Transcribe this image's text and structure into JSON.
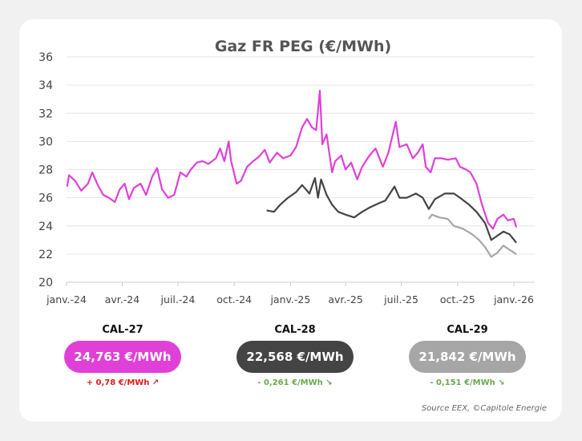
{
  "chart_data": {
    "type": "line",
    "title": "Gaz FR PEG (€/MWh)",
    "ylim": [
      20,
      36
    ],
    "yticks": [
      "20",
      "22",
      "24",
      "26",
      "28",
      "30",
      "32",
      "34",
      "36"
    ],
    "xticks": [
      {
        "date": "2024-01-01",
        "label": "janv.-24"
      },
      {
        "date": "2024-04-01",
        "label": "avr.-24"
      },
      {
        "date": "2024-07-01",
        "label": "juil.-24"
      },
      {
        "date": "2024-10-01",
        "label": "oct.-24"
      },
      {
        "date": "2025-01-01",
        "label": "janv.-25"
      },
      {
        "date": "2025-04-01",
        "label": "avr.-25"
      },
      {
        "date": "2025-07-01",
        "label": "juil.-25"
      },
      {
        "date": "2025-10-01",
        "label": "oct.-25"
      },
      {
        "date": "2026-01-01",
        "label": "janv.-26"
      }
    ],
    "grid": true,
    "series": [
      {
        "name": "CAL-27",
        "color": "#e040d8",
        "points": [
          [
            "2024-01-02",
            26.8
          ],
          [
            "2024-01-05",
            27.6
          ],
          [
            "2024-01-15",
            27.2
          ],
          [
            "2024-01-25",
            26.5
          ],
          [
            "2024-02-05",
            27.0
          ],
          [
            "2024-02-12",
            27.8
          ],
          [
            "2024-02-20",
            27.0
          ],
          [
            "2024-03-01",
            26.2
          ],
          [
            "2024-03-10",
            26.0
          ],
          [
            "2024-03-20",
            25.7
          ],
          [
            "2024-03-28",
            26.6
          ],
          [
            "2024-04-05",
            27.0
          ],
          [
            "2024-04-12",
            25.9
          ],
          [
            "2024-04-20",
            26.7
          ],
          [
            "2024-05-01",
            27.0
          ],
          [
            "2024-05-10",
            26.2
          ],
          [
            "2024-05-20",
            27.5
          ],
          [
            "2024-05-28",
            28.1
          ],
          [
            "2024-06-05",
            26.6
          ],
          [
            "2024-06-15",
            26.0
          ],
          [
            "2024-06-25",
            26.2
          ],
          [
            "2024-07-05",
            27.8
          ],
          [
            "2024-07-15",
            27.5
          ],
          [
            "2024-07-22",
            28.0
          ],
          [
            "2024-08-01",
            28.5
          ],
          [
            "2024-08-10",
            28.6
          ],
          [
            "2024-08-20",
            28.4
          ],
          [
            "2024-09-01",
            28.8
          ],
          [
            "2024-09-08",
            29.5
          ],
          [
            "2024-09-15",
            28.6
          ],
          [
            "2024-09-22",
            30.0
          ],
          [
            "2024-09-26",
            28.6
          ],
          [
            "2024-10-05",
            27.0
          ],
          [
            "2024-10-12",
            27.2
          ],
          [
            "2024-10-22",
            28.2
          ],
          [
            "2024-11-01",
            28.6
          ],
          [
            "2024-11-10",
            28.9
          ],
          [
            "2024-11-20",
            29.4
          ],
          [
            "2024-11-28",
            28.5
          ],
          [
            "2024-12-10",
            29.2
          ],
          [
            "2024-12-20",
            28.8
          ],
          [
            "2025-01-01",
            29.0
          ],
          [
            "2025-01-10",
            29.6
          ],
          [
            "2025-01-20",
            31.0
          ],
          [
            "2025-01-28",
            31.6
          ],
          [
            "2025-02-05",
            31.0
          ],
          [
            "2025-02-12",
            30.8
          ],
          [
            "2025-02-18",
            33.6
          ],
          [
            "2025-02-22",
            29.8
          ],
          [
            "2025-03-01",
            30.5
          ],
          [
            "2025-03-10",
            27.8
          ],
          [
            "2025-03-15",
            28.6
          ],
          [
            "2025-03-25",
            29.0
          ],
          [
            "2025-04-01",
            28.0
          ],
          [
            "2025-04-10",
            28.5
          ],
          [
            "2025-04-20",
            27.3
          ],
          [
            "2025-04-28",
            28.2
          ],
          [
            "2025-05-10",
            29.0
          ],
          [
            "2025-05-20",
            29.5
          ],
          [
            "2025-06-01",
            28.2
          ],
          [
            "2025-06-10",
            29.2
          ],
          [
            "2025-06-22",
            31.4
          ],
          [
            "2025-06-28",
            29.6
          ],
          [
            "2025-07-10",
            29.8
          ],
          [
            "2025-07-20",
            28.8
          ],
          [
            "2025-07-28",
            29.2
          ],
          [
            "2025-08-05",
            29.8
          ],
          [
            "2025-08-10",
            28.2
          ],
          [
            "2025-08-18",
            27.8
          ],
          [
            "2025-08-25",
            28.8
          ],
          [
            "2025-09-05",
            28.8
          ],
          [
            "2025-09-15",
            28.7
          ],
          [
            "2025-09-28",
            28.8
          ],
          [
            "2025-10-05",
            28.2
          ],
          [
            "2025-10-15",
            28.0
          ],
          [
            "2025-10-22",
            27.8
          ],
          [
            "2025-11-01",
            27.0
          ],
          [
            "2025-11-10",
            25.5
          ],
          [
            "2025-11-20",
            24.2
          ],
          [
            "2025-11-28",
            23.8
          ],
          [
            "2025-12-05",
            24.5
          ],
          [
            "2025-12-15",
            24.8
          ],
          [
            "2025-12-22",
            24.4
          ],
          [
            "2026-01-01",
            24.5
          ],
          [
            "2026-01-05",
            23.9
          ]
        ]
      },
      {
        "name": "CAL-28",
        "color": "#444444",
        "points": [
          [
            "2024-11-23",
            25.1
          ],
          [
            "2024-12-05",
            25.0
          ],
          [
            "2024-12-15",
            25.5
          ],
          [
            "2024-12-28",
            26.0
          ],
          [
            "2025-01-10",
            26.4
          ],
          [
            "2025-01-20",
            26.9
          ],
          [
            "2025-02-01",
            26.3
          ],
          [
            "2025-02-10",
            27.4
          ],
          [
            "2025-02-15",
            26.0
          ],
          [
            "2025-02-20",
            27.3
          ],
          [
            "2025-03-01",
            26.2
          ],
          [
            "2025-03-10",
            25.5
          ],
          [
            "2025-03-20",
            25.0
          ],
          [
            "2025-04-01",
            24.8
          ],
          [
            "2025-04-15",
            24.6
          ],
          [
            "2025-04-28",
            25.0
          ],
          [
            "2025-05-10",
            25.3
          ],
          [
            "2025-05-25",
            25.6
          ],
          [
            "2025-06-05",
            25.8
          ],
          [
            "2025-06-20",
            26.8
          ],
          [
            "2025-06-28",
            26.0
          ],
          [
            "2025-07-10",
            26.0
          ],
          [
            "2025-07-25",
            26.3
          ],
          [
            "2025-08-05",
            26.0
          ],
          [
            "2025-08-15",
            25.2
          ],
          [
            "2025-08-25",
            25.9
          ],
          [
            "2025-09-10",
            26.3
          ],
          [
            "2025-09-25",
            26.3
          ],
          [
            "2025-10-05",
            26.0
          ],
          [
            "2025-10-20",
            25.5
          ],
          [
            "2025-11-01",
            25.0
          ],
          [
            "2025-11-15",
            24.2
          ],
          [
            "2025-11-25",
            23.0
          ],
          [
            "2025-12-05",
            23.3
          ],
          [
            "2025-12-15",
            23.6
          ],
          [
            "2025-12-25",
            23.4
          ],
          [
            "2026-01-05",
            22.8
          ]
        ]
      },
      {
        "name": "CAL-29",
        "color": "#a6a6a6",
        "points": [
          [
            "2025-08-15",
            24.5
          ],
          [
            "2025-08-20",
            24.8
          ],
          [
            "2025-09-01",
            24.6
          ],
          [
            "2025-09-15",
            24.5
          ],
          [
            "2025-09-25",
            24.0
          ],
          [
            "2025-10-10",
            23.8
          ],
          [
            "2025-10-25",
            23.4
          ],
          [
            "2025-11-05",
            23.0
          ],
          [
            "2025-11-15",
            22.5
          ],
          [
            "2025-11-25",
            21.8
          ],
          [
            "2025-12-05",
            22.1
          ],
          [
            "2025-12-15",
            22.6
          ],
          [
            "2025-12-25",
            22.3
          ],
          [
            "2026-01-05",
            22.0
          ]
        ]
      }
    ]
  },
  "cards": [
    {
      "label": "CAL-27",
      "value": "24,763 €/MWh",
      "change": "+ 0,78 €/MWh",
      "arrow": "↗",
      "color": "#e040d8",
      "change_color": "#e01b1b"
    },
    {
      "label": "CAL-28",
      "value": "22,568 €/MWh",
      "change": "- 0,261 €/MWh",
      "arrow": "↘",
      "color": "#444444",
      "change_color": "#6aa84f"
    },
    {
      "label": "CAL-29",
      "value": "21,842 €/MWh",
      "change": "- 0,151 €/MWh",
      "arrow": "↘",
      "color": "#a6a6a6",
      "change_color": "#6aa84f"
    }
  ],
  "source": "Source EEX, ©Capitole Energie"
}
